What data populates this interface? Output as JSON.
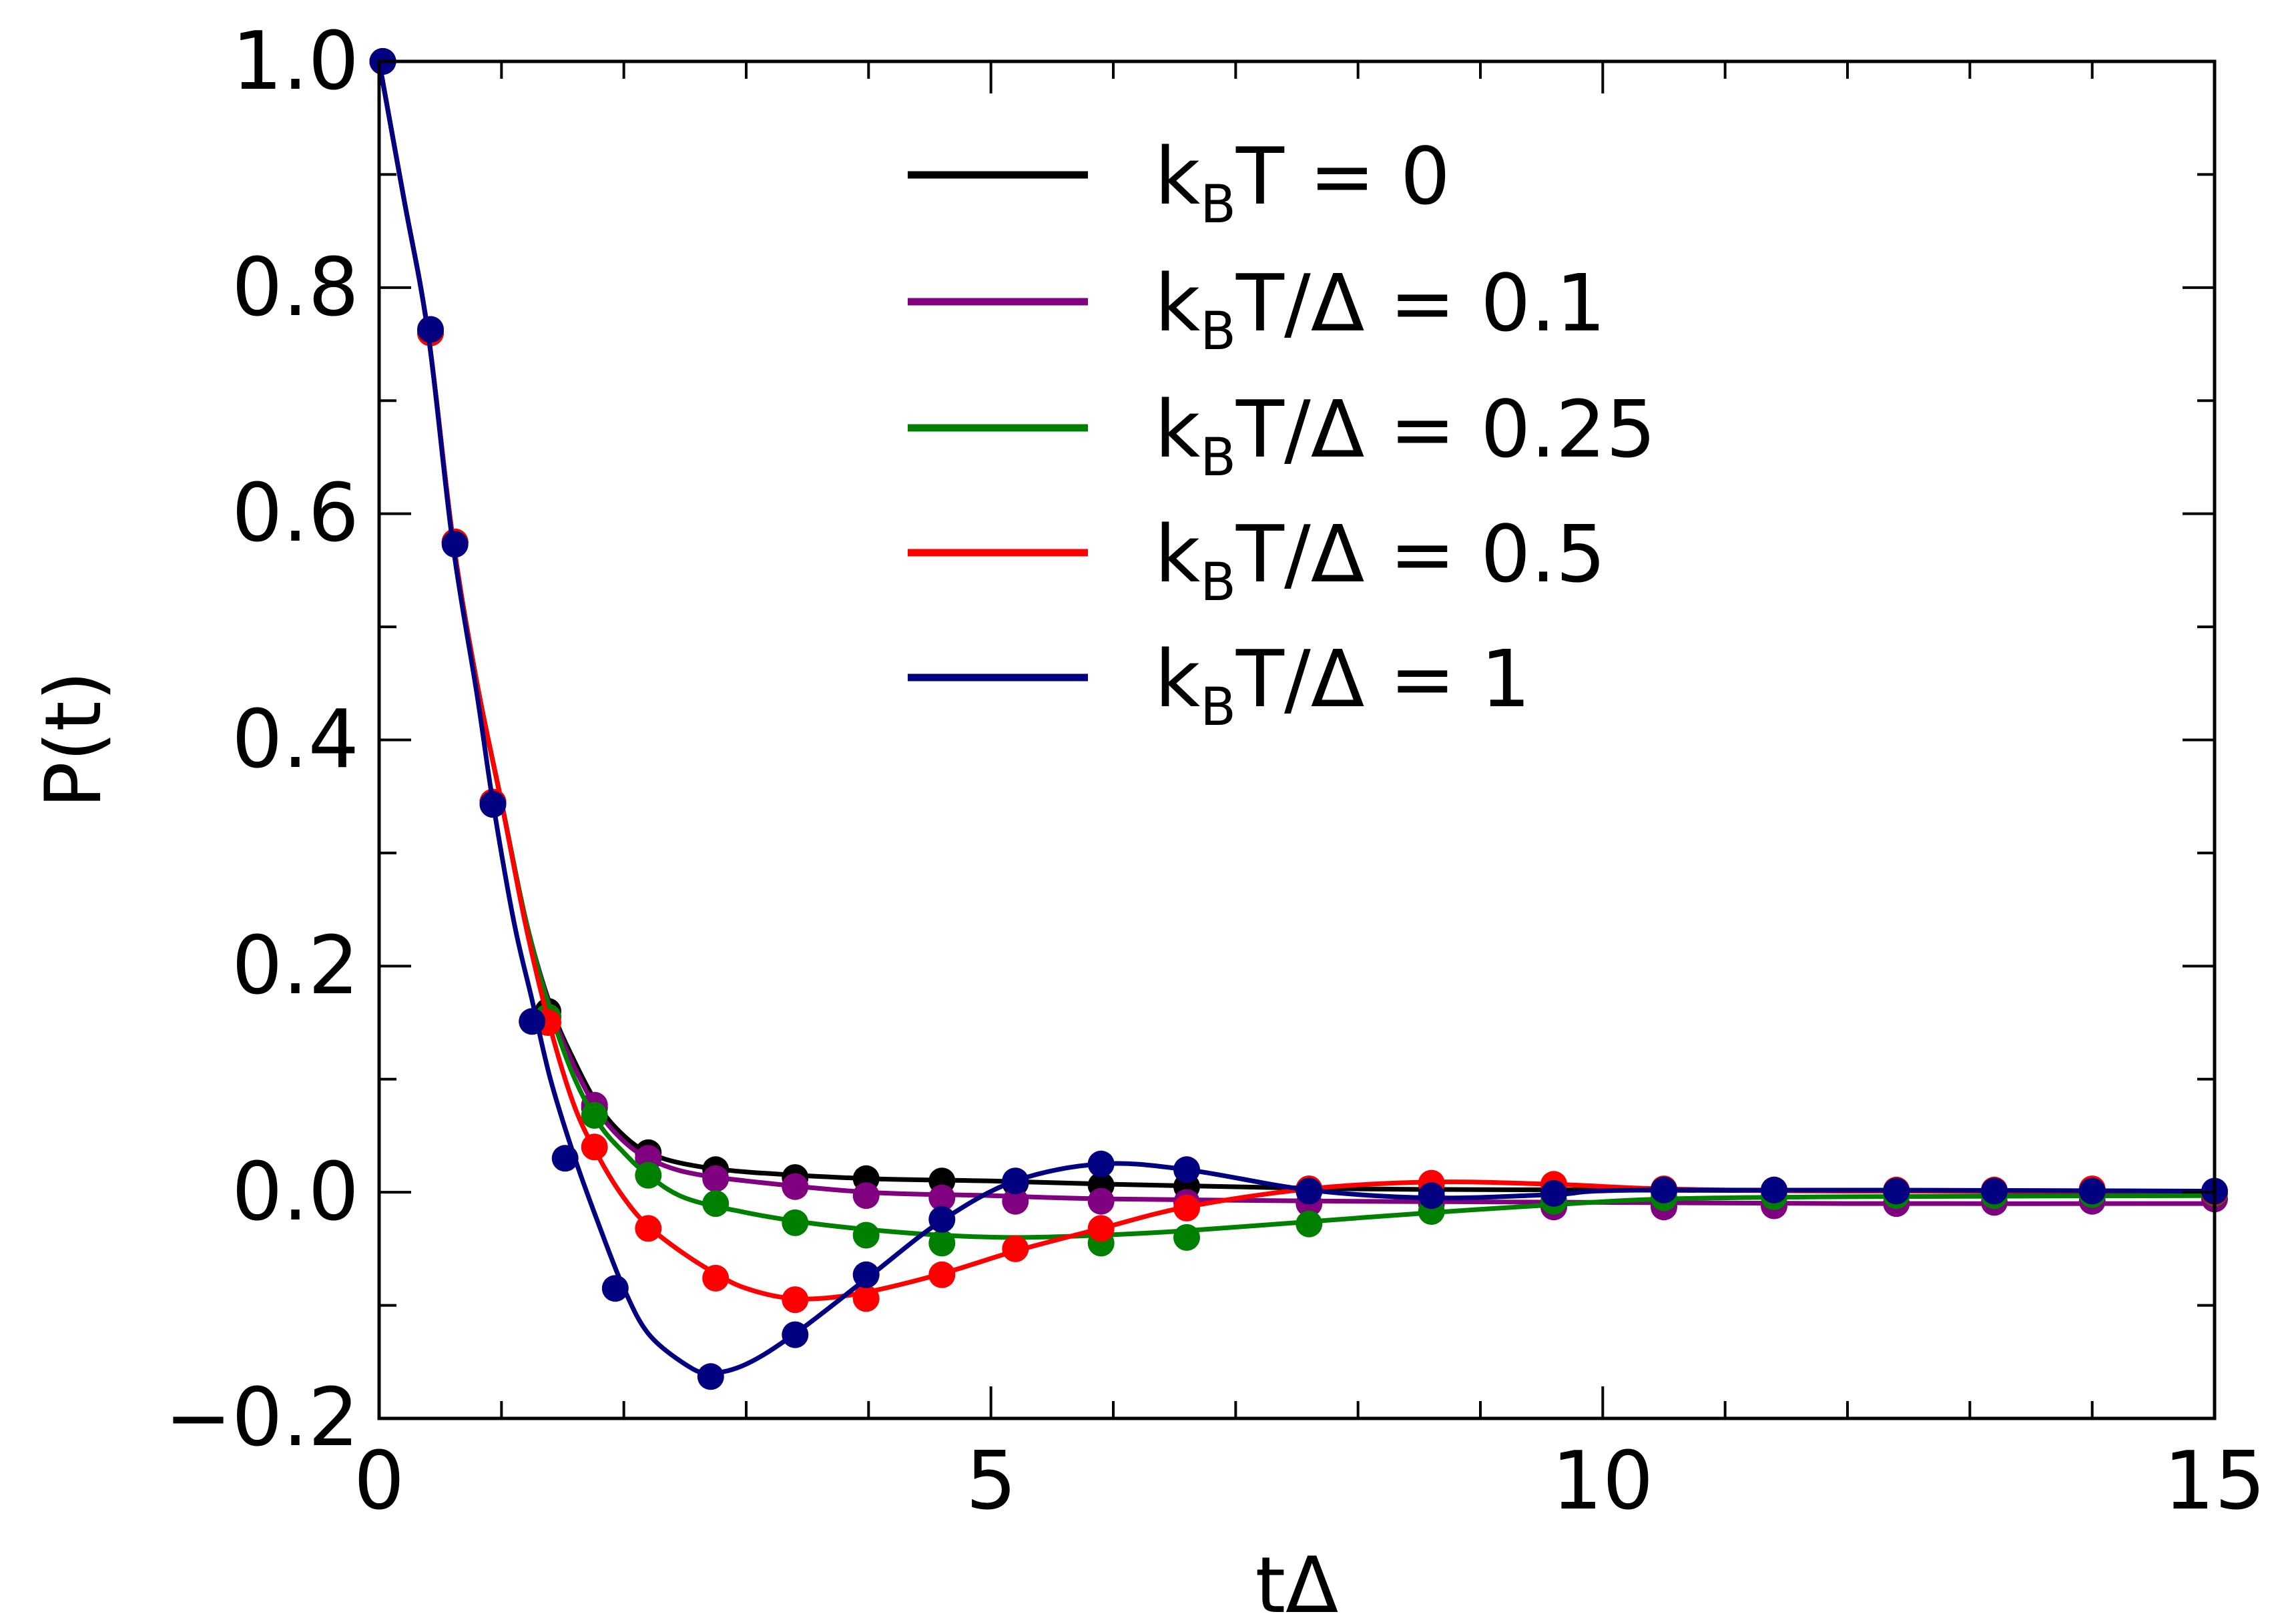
{
  "chart_data": {
    "type": "line",
    "title": "",
    "xlabel": "tΔ",
    "ylabel": "P(t)",
    "xlim": [
      0,
      15
    ],
    "ylim": [
      -0.2,
      1.0
    ],
    "xticks": [
      0,
      5,
      10,
      15
    ],
    "xtick_labels": [
      "0",
      "5",
      "10",
      "15"
    ],
    "yticks": [
      -0.2,
      0.0,
      0.2,
      0.4,
      0.6,
      0.8,
      1.0
    ],
    "ytick_labels": [
      "−0.2",
      "0.0",
      "0.2",
      "0.4",
      "0.6",
      "0.8",
      "1.0"
    ],
    "legend_position": "top-right",
    "series": [
      {
        "name": "k_BT = 0",
        "legend": {
          "pre": "k",
          "sub": "B",
          "post": "T = 0"
        },
        "color": "#000000",
        "curve": [
          [
            0,
            1.0
          ],
          [
            0.2,
            0.88
          ],
          [
            0.4,
            0.76
          ],
          [
            0.6,
            0.58
          ],
          [
            0.8,
            0.45
          ],
          [
            1.0,
            0.345
          ],
          [
            1.2,
            0.24
          ],
          [
            1.4,
            0.165
          ],
          [
            1.6,
            0.115
          ],
          [
            1.8,
            0.075
          ],
          [
            2.0,
            0.05
          ],
          [
            2.2,
            0.035
          ],
          [
            2.5,
            0.025
          ],
          [
            3.0,
            0.018
          ],
          [
            4.0,
            0.012
          ],
          [
            5.0,
            0.01
          ],
          [
            6.0,
            0.007
          ],
          [
            8.0,
            0.003
          ],
          [
            10.0,
            0.002
          ],
          [
            15.0,
            0.0
          ]
        ],
        "points": [
          [
            0.03,
            1.0
          ],
          [
            0.42,
            0.76
          ],
          [
            0.62,
            0.575
          ],
          [
            0.93,
            0.345
          ],
          [
            1.38,
            0.16
          ],
          [
            1.76,
            0.075
          ],
          [
            2.2,
            0.035
          ],
          [
            2.75,
            0.02
          ],
          [
            3.4,
            0.013
          ],
          [
            3.98,
            0.012
          ],
          [
            4.6,
            0.01
          ],
          [
            5.2,
            0.008
          ],
          [
            5.9,
            0.006
          ],
          [
            6.6,
            0.005
          ],
          [
            7.6,
            0.003
          ],
          [
            8.6,
            0.002
          ],
          [
            9.6,
            0.001
          ],
          [
            10.5,
            0.001
          ],
          [
            11.4,
            0.001
          ],
          [
            12.4,
            0.0
          ],
          [
            13.2,
            0.0
          ],
          [
            14.0,
            0.0
          ],
          [
            15.0,
            0.0
          ]
        ]
      },
      {
        "name": "k_BT/Δ = 0.1",
        "legend": {
          "pre": "k",
          "sub": "B",
          "post": "T/Δ = 0.1"
        },
        "color": "#800080",
        "curve": [
          [
            0,
            1.0
          ],
          [
            0.2,
            0.88
          ],
          [
            0.4,
            0.76
          ],
          [
            0.6,
            0.58
          ],
          [
            0.8,
            0.45
          ],
          [
            1.0,
            0.345
          ],
          [
            1.2,
            0.24
          ],
          [
            1.4,
            0.163
          ],
          [
            1.6,
            0.11
          ],
          [
            1.8,
            0.07
          ],
          [
            2.0,
            0.045
          ],
          [
            2.2,
            0.03
          ],
          [
            2.5,
            0.018
          ],
          [
            3.0,
            0.01
          ],
          [
            4.0,
            0.0
          ],
          [
            5.0,
            -0.003
          ],
          [
            6.0,
            -0.006
          ],
          [
            8.0,
            -0.008
          ],
          [
            10.0,
            -0.009
          ],
          [
            12.0,
            -0.01
          ],
          [
            15.0,
            -0.01
          ]
        ],
        "points": [
          [
            0.03,
            1.0
          ],
          [
            0.42,
            0.76
          ],
          [
            0.62,
            0.575
          ],
          [
            0.93,
            0.345
          ],
          [
            1.38,
            0.155
          ],
          [
            1.76,
            0.077
          ],
          [
            2.2,
            0.03
          ],
          [
            2.75,
            0.012
          ],
          [
            3.4,
            0.005
          ],
          [
            3.98,
            -0.003
          ],
          [
            4.6,
            -0.005
          ],
          [
            5.2,
            -0.008
          ],
          [
            5.9,
            -0.008
          ],
          [
            6.6,
            -0.009
          ],
          [
            7.6,
            -0.01
          ],
          [
            8.6,
            -0.01
          ],
          [
            9.6,
            -0.013
          ],
          [
            10.5,
            -0.013
          ],
          [
            11.4,
            -0.012
          ],
          [
            12.4,
            -0.01
          ],
          [
            13.2,
            -0.009
          ],
          [
            14.0,
            -0.008
          ],
          [
            15.0,
            -0.006
          ]
        ]
      },
      {
        "name": "k_BT/Δ = 0.25",
        "legend": {
          "pre": "k",
          "sub": "B",
          "post": "T/Δ = 0.25"
        },
        "color": "#008000",
        "curve": [
          [
            0,
            1.0
          ],
          [
            0.2,
            0.88
          ],
          [
            0.4,
            0.76
          ],
          [
            0.6,
            0.58
          ],
          [
            0.8,
            0.45
          ],
          [
            1.0,
            0.345
          ],
          [
            1.2,
            0.24
          ],
          [
            1.4,
            0.16
          ],
          [
            1.6,
            0.1
          ],
          [
            1.8,
            0.06
          ],
          [
            2.0,
            0.035
          ],
          [
            2.2,
            0.015
          ],
          [
            2.5,
            -0.005
          ],
          [
            3.0,
            -0.018
          ],
          [
            3.5,
            -0.027
          ],
          [
            4.0,
            -0.033
          ],
          [
            4.6,
            -0.038
          ],
          [
            5.2,
            -0.04
          ],
          [
            5.9,
            -0.038
          ],
          [
            6.6,
            -0.034
          ],
          [
            7.6,
            -0.026
          ],
          [
            8.6,
            -0.018
          ],
          [
            9.6,
            -0.011
          ],
          [
            10.5,
            -0.006
          ],
          [
            12.0,
            -0.004
          ],
          [
            15.0,
            -0.003
          ]
        ],
        "points": [
          [
            0.03,
            1.0
          ],
          [
            0.42,
            0.76
          ],
          [
            0.62,
            0.575
          ],
          [
            0.93,
            0.345
          ],
          [
            1.38,
            0.155
          ],
          [
            1.76,
            0.068
          ],
          [
            2.2,
            0.015
          ],
          [
            2.75,
            -0.01
          ],
          [
            3.4,
            -0.027
          ],
          [
            3.98,
            -0.038
          ],
          [
            4.6,
            -0.045
          ],
          [
            5.9,
            -0.045
          ],
          [
            6.6,
            -0.04
          ],
          [
            7.6,
            -0.028
          ],
          [
            8.6,
            -0.017
          ],
          [
            9.6,
            -0.008
          ],
          [
            10.5,
            -0.005
          ],
          [
            11.4,
            -0.004
          ],
          [
            12.4,
            -0.003
          ],
          [
            13.2,
            -0.003
          ],
          [
            14.0,
            -0.002
          ],
          [
            15.0,
            -0.001
          ]
        ]
      },
      {
        "name": "k_BT/Δ = 0.5",
        "legend": {
          "pre": "k",
          "sub": "B",
          "post": "T/Δ = 0.5"
        },
        "color": "#ff0000",
        "curve": [
          [
            0,
            1.0
          ],
          [
            0.2,
            0.88
          ],
          [
            0.4,
            0.76
          ],
          [
            0.6,
            0.58
          ],
          [
            0.8,
            0.45
          ],
          [
            1.0,
            0.345
          ],
          [
            1.2,
            0.235
          ],
          [
            1.4,
            0.145
          ],
          [
            1.6,
            0.075
          ],
          [
            1.8,
            0.03
          ],
          [
            2.0,
            -0.005
          ],
          [
            2.2,
            -0.03
          ],
          [
            2.5,
            -0.055
          ],
          [
            2.8,
            -0.075
          ],
          [
            3.0,
            -0.085
          ],
          [
            3.3,
            -0.093
          ],
          [
            3.6,
            -0.094
          ],
          [
            4.0,
            -0.088
          ],
          [
            4.6,
            -0.072
          ],
          [
            5.2,
            -0.052
          ],
          [
            5.9,
            -0.032
          ],
          [
            6.6,
            -0.013
          ],
          [
            7.6,
            0.003
          ],
          [
            8.6,
            0.009
          ],
          [
            9.6,
            0.007
          ],
          [
            10.5,
            0.003
          ],
          [
            12.0,
            0.001
          ],
          [
            15.0,
            0.001
          ]
        ],
        "points": [
          [
            0.03,
            1.0
          ],
          [
            0.42,
            0.76
          ],
          [
            0.62,
            0.575
          ],
          [
            0.93,
            0.345
          ],
          [
            1.38,
            0.15
          ],
          [
            1.76,
            0.04
          ],
          [
            2.2,
            -0.032
          ],
          [
            2.75,
            -0.076
          ],
          [
            3.4,
            -0.095
          ],
          [
            3.98,
            -0.094
          ],
          [
            4.6,
            -0.073
          ],
          [
            5.2,
            -0.05
          ],
          [
            5.9,
            -0.032
          ],
          [
            6.6,
            -0.014
          ],
          [
            7.6,
            0.003
          ],
          [
            8.6,
            0.008
          ],
          [
            9.6,
            0.007
          ],
          [
            10.5,
            0.003
          ],
          [
            11.4,
            0.002
          ],
          [
            12.4,
            0.002
          ],
          [
            13.2,
            0.002
          ],
          [
            14.0,
            0.003
          ],
          [
            15.0,
            0.0
          ]
        ]
      },
      {
        "name": "k_BT/Δ = 1",
        "legend": {
          "pre": "k",
          "sub": "B",
          "post": "T/Δ = 1"
        },
        "color": "#000080",
        "curve": [
          [
            0,
            1.0
          ],
          [
            0.2,
            0.88
          ],
          [
            0.4,
            0.76
          ],
          [
            0.6,
            0.575
          ],
          [
            0.8,
            0.44
          ],
          [
            0.93,
            0.345
          ],
          [
            1.1,
            0.24
          ],
          [
            1.25,
            0.17
          ],
          [
            1.4,
            0.1
          ],
          [
            1.6,
            0.03
          ],
          [
            1.8,
            -0.03
          ],
          [
            2.0,
            -0.085
          ],
          [
            2.2,
            -0.125
          ],
          [
            2.5,
            -0.152
          ],
          [
            2.7,
            -0.16
          ],
          [
            3.0,
            -0.152
          ],
          [
            3.4,
            -0.125
          ],
          [
            4.0,
            -0.075
          ],
          [
            4.6,
            -0.025
          ],
          [
            5.2,
            0.01
          ],
          [
            5.9,
            0.025
          ],
          [
            6.6,
            0.02
          ],
          [
            7.6,
            0.002
          ],
          [
            8.6,
            -0.005
          ],
          [
            9.6,
            -0.002
          ],
          [
            10.5,
            0.002
          ],
          [
            15.0,
            0.001
          ]
        ],
        "points": [
          [
            0.03,
            1.0
          ],
          [
            0.42,
            0.763
          ],
          [
            0.62,
            0.573
          ],
          [
            0.93,
            0.343
          ],
          [
            1.25,
            0.151
          ],
          [
            1.52,
            0.03
          ],
          [
            1.93,
            -0.085
          ],
          [
            2.71,
            -0.163
          ],
          [
            3.4,
            -0.126
          ],
          [
            3.98,
            -0.073
          ],
          [
            4.6,
            -0.024
          ],
          [
            5.2,
            0.01
          ],
          [
            5.9,
            0.025
          ],
          [
            6.6,
            0.02
          ],
          [
            7.6,
            0.001
          ],
          [
            8.6,
            -0.003
          ],
          [
            9.6,
            -0.001
          ],
          [
            10.5,
            0.002
          ],
          [
            11.4,
            0.002
          ],
          [
            12.4,
            0.001
          ],
          [
            13.2,
            0.001
          ],
          [
            14.0,
            0.001
          ],
          [
            15.0,
            0.001
          ]
        ]
      }
    ]
  }
}
